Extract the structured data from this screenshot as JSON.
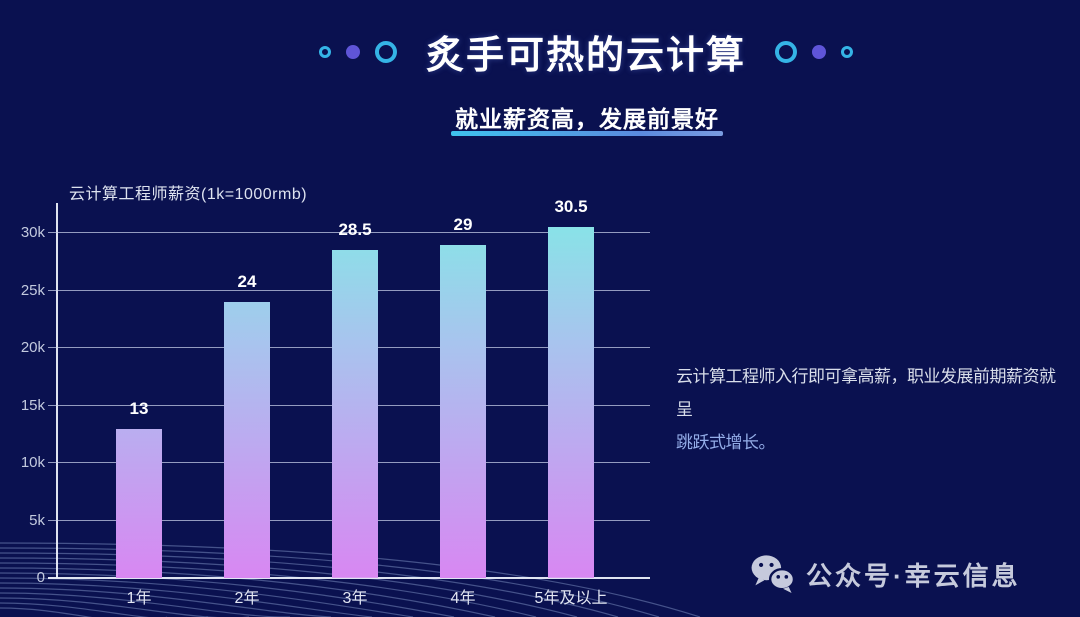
{
  "slide": {
    "title": "炙手可热的云计算",
    "subtitle": "就业薪资高，发展前景好"
  },
  "chart_header": {
    "label": "云计算工程师薪资(1k=1000rmb)"
  },
  "chart_data": {
    "type": "bar",
    "title": "云计算工程师薪资(1k=1000rmb)",
    "categories": [
      "1年",
      "2年",
      "3年",
      "4年",
      "5年及以上"
    ],
    "values": [
      13,
      24,
      28.5,
      29,
      30.5
    ],
    "value_labels": [
      "13",
      "24",
      "28.5",
      "29",
      "30.5"
    ],
    "unit_note": "1k=1000rmb",
    "xlabel": "",
    "ylabel": "",
    "yticks": [
      "0",
      "5k",
      "10k",
      "15k",
      "20k",
      "25k",
      "30k"
    ],
    "ytick_values": [
      0,
      5,
      10,
      15,
      20,
      25,
      30
    ],
    "ylim": [
      0,
      32.4
    ],
    "grid": true,
    "legend": false,
    "bar_gradient_top": "#83e8e6",
    "bar_gradient_mid": "#a9c3ee",
    "bar_gradient_bottom": "#d887f2"
  },
  "description": {
    "line1": "云计算工程师入行即可拿高薪，职业发展前期薪资就呈",
    "highlight": "跳跃式增长。",
    "highlight_color": "#94ade8"
  },
  "watermark": {
    "icon": "wechat-icon",
    "text": "公众号·幸云信息"
  },
  "decorations": {
    "left_circles": [
      "ring-small",
      "dot-filled",
      "ring-large"
    ],
    "right_circles": [
      "ring-large",
      "dot-filled",
      "ring-small"
    ],
    "ring_color": "#35b4e6",
    "dot_color": "#5f55d8",
    "underline_gradient": [
      "#3fc3ee",
      "#7a9ce0"
    ],
    "background": "#0a1150",
    "gridline_color": "#cbd3eb"
  }
}
